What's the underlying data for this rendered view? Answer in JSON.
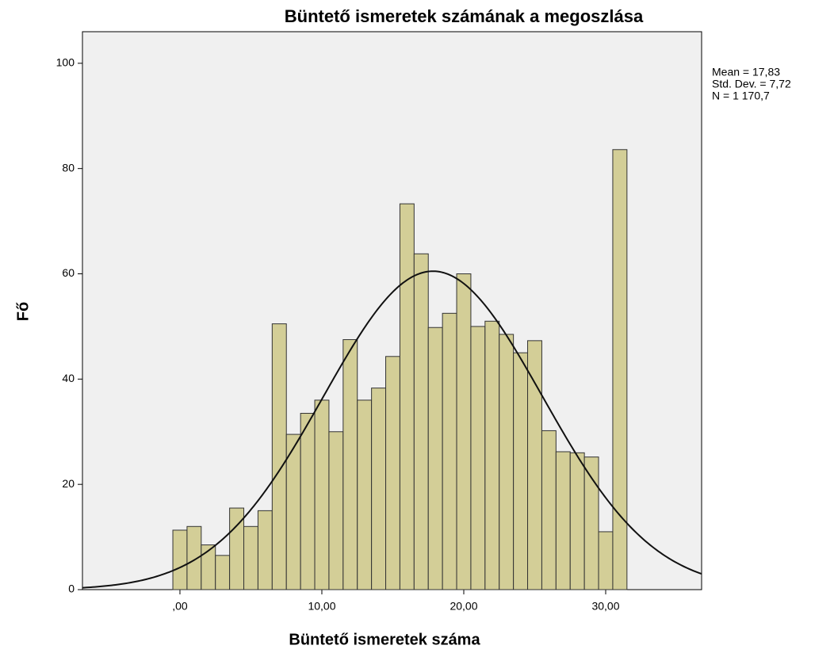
{
  "chart_data": {
    "type": "histogram",
    "title": "Büntető ismeretek számának a megoszlása",
    "xlabel": "Büntető ismeretek száma",
    "ylabel": "Fő",
    "bins": [
      -0.5,
      0.5,
      1.5,
      2.5,
      3.5,
      4.5,
      5.5,
      6.5,
      7.5,
      8.5,
      9.5,
      10.5,
      11.5,
      12.5,
      13.5,
      14.5,
      15.5,
      16.5,
      17.5,
      18.5,
      19.5,
      20.5,
      21.5,
      22.5,
      23.5,
      24.5,
      25.5,
      26.5,
      27.5,
      28.5,
      29.5,
      30.5,
      31.5
    ],
    "counts": [
      11.3,
      12,
      8.5,
      6.5,
      15.5,
      12,
      15,
      50.5,
      29.5,
      33.5,
      36,
      30,
      47.5,
      36,
      38.3,
      44.3,
      73.3,
      63.8,
      49.8,
      52.5,
      60,
      50,
      51,
      48.5,
      45,
      47.3,
      30.2,
      26.2,
      26,
      25.2,
      11,
      83.6
    ],
    "color": "#d3ce97",
    "xlim": [
      -6.87,
      36.76
    ],
    "ylim": [
      0,
      106
    ],
    "xticks": [
      {
        "value": 0,
        "label": ",00"
      },
      {
        "value": 10,
        "label": "10,00"
      },
      {
        "value": 20,
        "label": "20,00"
      },
      {
        "value": 30,
        "label": "30,00"
      }
    ],
    "yticks": [
      0,
      20,
      40,
      60,
      80,
      100
    ],
    "stats": [
      {
        "label": "Mean = 17,83",
        "value": 17.83
      },
      {
        "label": "Std. Dev. = 7,72",
        "value": 7.72
      },
      {
        "label": "N = 1 170,7",
        "value": 1170.7
      }
    ]
  }
}
